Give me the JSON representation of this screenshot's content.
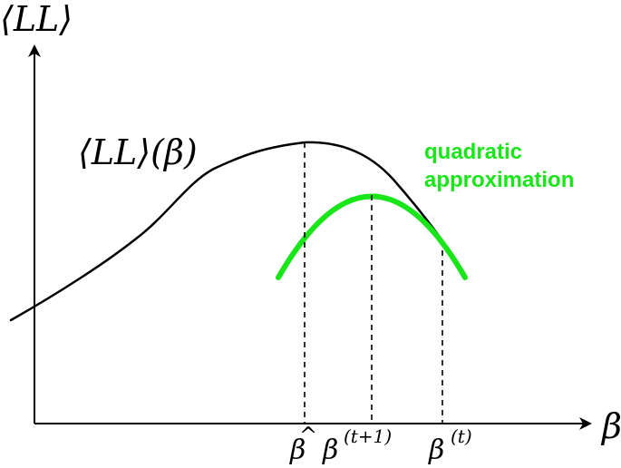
{
  "labels": {
    "y_axis": "⟨LL⟩",
    "x_axis": "β",
    "curve_main": "⟨LL⟩(β)",
    "quadratic_line1": "quadratic",
    "quadratic_line2": "approximation",
    "beta_hat": {
      "symbol": "β",
      "accent": "^"
    },
    "beta_t1": {
      "base": "β",
      "sup": "(t+1)"
    },
    "beta_t": {
      "base": "β",
      "sup": "(t)"
    }
  },
  "colors": {
    "black": "#000000",
    "green": "#19e619"
  }
}
